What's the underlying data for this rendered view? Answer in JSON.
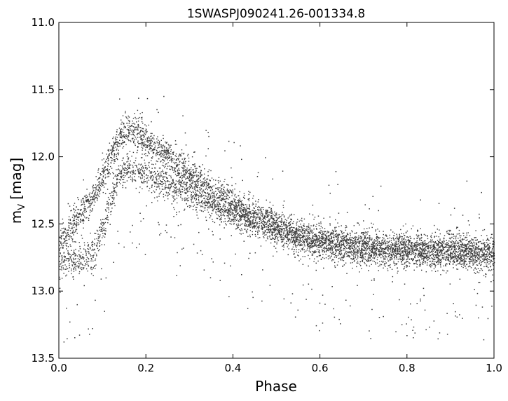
{
  "chart_data": {
    "type": "scatter",
    "title": "1SWASPJ090241.26-001334.8",
    "xlabel": "Phase",
    "ylabel_main": "m",
    "ylabel_sub": "V",
    "ylabel_unit": "[mag]",
    "xlim": [
      0.0,
      1.0
    ],
    "ylim": [
      11.0,
      13.5
    ],
    "y_inverted": true,
    "x_ticks": [
      "0.0",
      "0.2",
      "0.4",
      "0.6",
      "0.8",
      "1.0"
    ],
    "y_ticks": [
      "11.0",
      "11.5",
      "12.0",
      "12.5",
      "13.0",
      "13.5"
    ],
    "grid": false,
    "legend": false,
    "marker_color": "#3a3a3a",
    "light_curve": {
      "phase": [
        0.0,
        0.02,
        0.05,
        0.08,
        0.1,
        0.12,
        0.14,
        0.16,
        0.18,
        0.2,
        0.25,
        0.3,
        0.35,
        0.4,
        0.45,
        0.5,
        0.55,
        0.6,
        0.65,
        0.7,
        0.75,
        0.8,
        0.85,
        0.9,
        0.95,
        1.0
      ],
      "upper_branch_mag": [
        12.62,
        12.55,
        12.42,
        12.28,
        12.15,
        11.98,
        11.85,
        11.8,
        11.82,
        11.87,
        12.0,
        12.12,
        12.24,
        12.35,
        12.44,
        12.51,
        12.57,
        12.61,
        12.64,
        12.66,
        12.67,
        12.67,
        12.68,
        12.68,
        12.69,
        12.7
      ],
      "lower_branch_mag": [
        12.78,
        12.78,
        12.76,
        12.7,
        12.55,
        12.3,
        12.12,
        12.08,
        12.1,
        12.12,
        12.2,
        12.28,
        12.36,
        12.43,
        12.5,
        12.56,
        12.61,
        12.65,
        12.68,
        12.7,
        12.71,
        12.72,
        12.72,
        12.73,
        12.74,
        12.76
      ],
      "scatter_mag": 0.06
    }
  }
}
